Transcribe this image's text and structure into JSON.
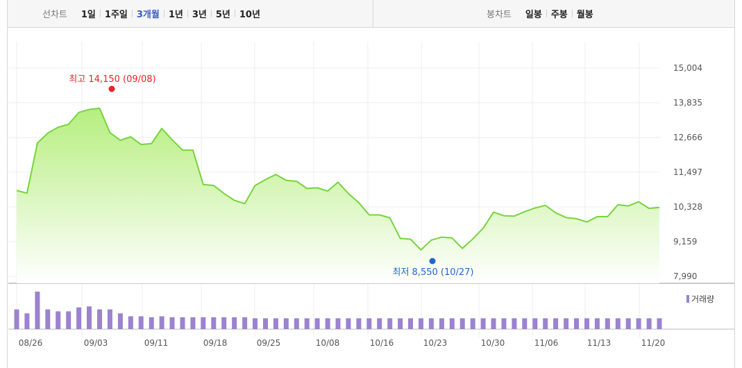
{
  "toolbar": {
    "line_chart_label": "선차트",
    "periods": [
      "1일",
      "1주일",
      "3개월",
      "1년",
      "3년",
      "5년",
      "10년"
    ],
    "active_period": "3개월",
    "candle_chart_label": "봉차트",
    "candle_periods": [
      "일봉",
      "주봉",
      "월봉"
    ]
  },
  "colors": {
    "line": "#77d43a",
    "fill_top": "#b6ee7f",
    "fill_bottom": "#ffffff",
    "volume": "#9b83cf",
    "high": "#e8222a",
    "low": "#1f65d6",
    "active_tab": "#3a5cc4"
  },
  "chart_data": [
    {
      "type": "area",
      "ylim": [
        7990,
        15004
      ],
      "y_ticks": [
        "15,004",
        "13,835",
        "12,666",
        "11,497",
        "10,328",
        "9,159",
        "7,990"
      ],
      "x_ticks": [
        "08/26",
        "09/03",
        "09/11",
        "09/18",
        "09/25",
        "10/08",
        "10/16",
        "10/23",
        "10/30",
        "11/06",
        "11/13",
        "11/20"
      ],
      "grid": true,
      "high_label": "최고 14,150 (09/08)",
      "low_label": "최저 8,550 (10/27)",
      "high": {
        "value": 14150,
        "index": 9
      },
      "low": {
        "value": 8550,
        "index": 40
      },
      "values": [
        10880,
        10790,
        12480,
        12810,
        13010,
        13110,
        13510,
        13610,
        13650,
        12830,
        12570,
        12690,
        12430,
        12460,
        12970,
        12590,
        12240,
        12240,
        11080,
        11050,
        10780,
        10550,
        10440,
        11050,
        11250,
        11420,
        11220,
        11190,
        10950,
        10970,
        10860,
        11160,
        10780,
        10470,
        10060,
        10060,
        9960,
        9270,
        9240,
        8880,
        9210,
        9310,
        9280,
        8930,
        9250,
        9610,
        10150,
        10030,
        10020,
        10170,
        10290,
        10380,
        10130,
        9970,
        9930,
        9820,
        10000,
        10000,
        10400,
        10360,
        10500,
        10280,
        10310
      ]
    },
    {
      "type": "bar",
      "series": [
        {
          "name": "거래량",
          "values": [
            100,
            80,
            190,
            100,
            90,
            90,
            110,
            115,
            100,
            100,
            80,
            65,
            65,
            60,
            65,
            60,
            60,
            60,
            60,
            60,
            60,
            60,
            60,
            55,
            55,
            55,
            55,
            55,
            55,
            55,
            55,
            55,
            55,
            55,
            55,
            55,
            55,
            55,
            55,
            55,
            55,
            55,
            55,
            55,
            55,
            55,
            55,
            55,
            55,
            55,
            55,
            55,
            55,
            55,
            55,
            55,
            55,
            55,
            55,
            55,
            55,
            55,
            55
          ]
        }
      ],
      "legend_label": "거래량",
      "legend_position": "top-right"
    }
  ]
}
